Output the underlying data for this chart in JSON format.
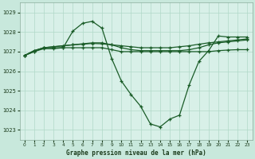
{
  "background_color": "#c8e8dc",
  "plot_bg_color": "#d8f0e8",
  "line_color": "#1a5c28",
  "grid_color": "#b0d8c8",
  "xlabel": "Graphe pression niveau de la mer (hPa)",
  "ylim": [
    1022.5,
    1029.5
  ],
  "xlim": [
    -0.5,
    23.5
  ],
  "yticks": [
    1023,
    1024,
    1025,
    1026,
    1027,
    1028,
    1029
  ],
  "xticks": [
    0,
    1,
    2,
    3,
    4,
    5,
    6,
    7,
    8,
    9,
    10,
    11,
    12,
    13,
    14,
    15,
    16,
    17,
    18,
    19,
    20,
    21,
    22,
    23
  ],
  "series": [
    [
      1026.8,
      1027.0,
      1027.2,
      1027.2,
      1027.2,
      1028.05,
      1028.45,
      1028.55,
      1028.2,
      1026.65,
      1025.5,
      1024.8,
      1024.2,
      1023.3,
      1023.15,
      1023.55,
      1023.75,
      1025.3,
      1026.5,
      1027.05,
      1027.8,
      1027.75,
      1027.75,
      1027.75
    ],
    [
      1026.8,
      1027.05,
      1027.2,
      1027.25,
      1027.3,
      1027.35,
      1027.4,
      1027.45,
      1027.45,
      1027.35,
      1027.2,
      1027.1,
      1027.05,
      1027.05,
      1027.05,
      1027.05,
      1027.05,
      1027.1,
      1027.2,
      1027.35,
      1027.45,
      1027.5,
      1027.55,
      1027.6
    ],
    [
      1026.8,
      1027.05,
      1027.2,
      1027.25,
      1027.3,
      1027.35,
      1027.38,
      1027.42,
      1027.4,
      1027.35,
      1027.3,
      1027.25,
      1027.2,
      1027.2,
      1027.2,
      1027.2,
      1027.25,
      1027.3,
      1027.38,
      1027.45,
      1027.5,
      1027.55,
      1027.6,
      1027.65
    ],
    [
      1026.8,
      1027.0,
      1027.15,
      1027.15,
      1027.2,
      1027.2,
      1027.2,
      1027.2,
      1027.2,
      1027.1,
      1027.0,
      1027.0,
      1027.0,
      1027.0,
      1027.0,
      1027.0,
      1027.0,
      1027.0,
      1027.0,
      1027.0,
      1027.05,
      1027.08,
      1027.1,
      1027.1
    ]
  ]
}
